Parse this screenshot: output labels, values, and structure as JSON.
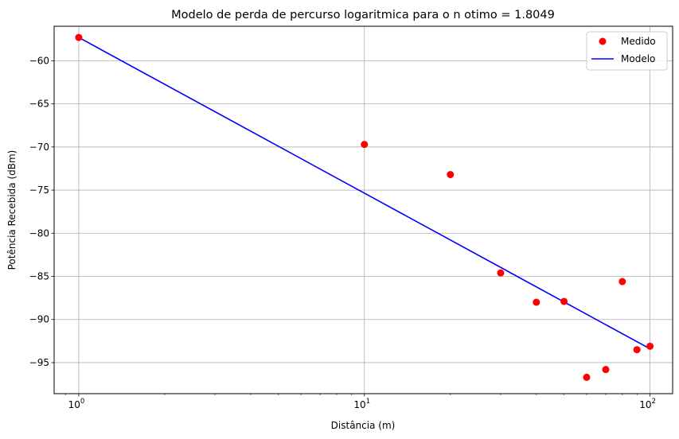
{
  "chart_data": {
    "type": "scatter",
    "title": "Modelo de perda de percurso logaritmica para o n otimo = 1.8049",
    "xlabel": "Distância (m)",
    "ylabel": "Potência Recebida (dBm)",
    "xscale": "log",
    "xlim": [
      0.82,
      120
    ],
    "ylim": [
      -98.6,
      -56.0
    ],
    "x_ticks": [
      {
        "value": 1,
        "label_base": "10",
        "label_exp": "0"
      },
      {
        "value": 10,
        "label_base": "10",
        "label_exp": "1"
      },
      {
        "value": 100,
        "label_base": "10",
        "label_exp": "2"
      }
    ],
    "y_ticks": [
      {
        "value": -60,
        "label": "−60"
      },
      {
        "value": -65,
        "label": "−65"
      },
      {
        "value": -70,
        "label": "−70"
      },
      {
        "value": -75,
        "label": "−75"
      },
      {
        "value": -80,
        "label": "−80"
      },
      {
        "value": -85,
        "label": "−85"
      },
      {
        "value": -90,
        "label": "−90"
      },
      {
        "value": -95,
        "label": "−95"
      }
    ],
    "grid": true,
    "legend_position": "top-right",
    "series": [
      {
        "name": "Medido",
        "kind": "scatter",
        "color": "#ff0000",
        "x": [
          1,
          10,
          20,
          30,
          40,
          50,
          60,
          70,
          80,
          90,
          100
        ],
        "y": [
          -57.3,
          -69.7,
          -73.2,
          -84.6,
          -88.0,
          -87.9,
          -96.7,
          -95.8,
          -85.6,
          -93.5,
          -93.1
        ]
      },
      {
        "name": "Modelo",
        "kind": "line",
        "color": "#0000ff",
        "x": [
          1,
          100
        ],
        "y": [
          -57.3,
          -93.4
        ]
      }
    ]
  }
}
